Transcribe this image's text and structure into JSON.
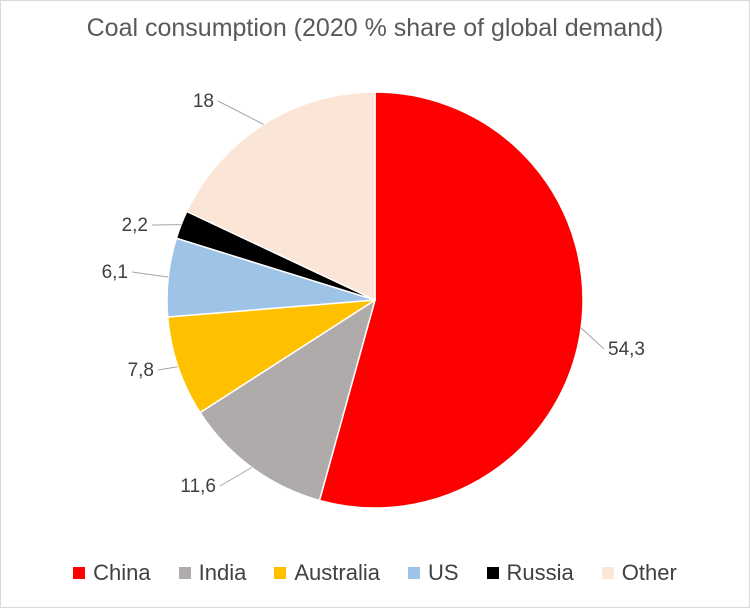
{
  "chart_data": {
    "type": "pie",
    "title": "Coal consumption (2020 % share of global demand)",
    "categories": [
      "China",
      "India",
      "Australia",
      "US",
      "Russia",
      "Other"
    ],
    "values": [
      54.3,
      11.6,
      7.8,
      6.1,
      2.2,
      18
    ],
    "value_labels": [
      "54,3",
      "11,6",
      "7,8",
      "6,1",
      "2,2",
      "18"
    ],
    "colors": [
      "#ff0000",
      "#afabab",
      "#ffc000",
      "#9dc3e6",
      "#000000",
      "#fbe5d6"
    ],
    "start_angle_deg": 0,
    "direction": "clockwise",
    "legend_position": "bottom"
  }
}
